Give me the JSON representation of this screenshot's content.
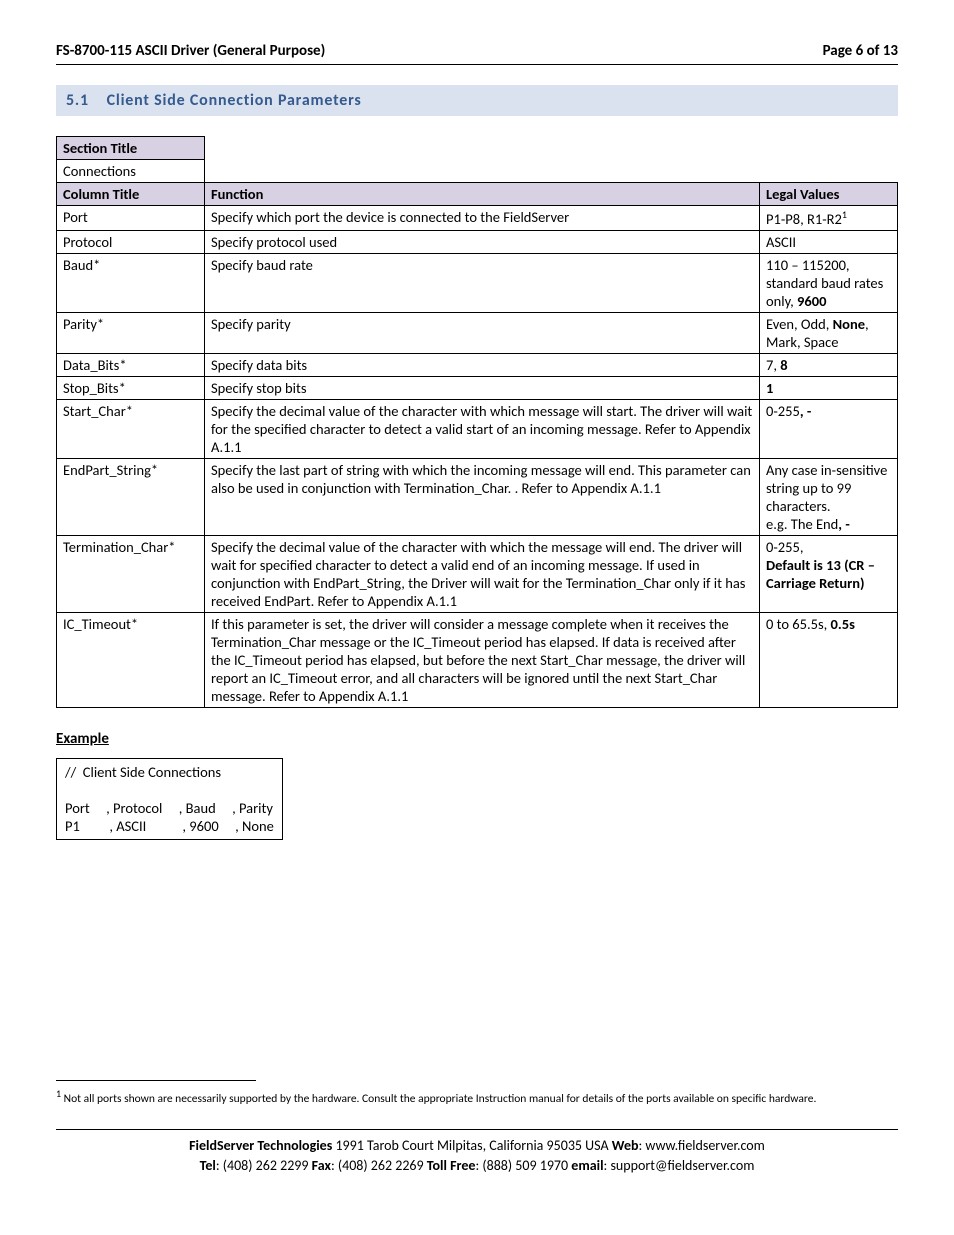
{
  "header": {
    "left": "FS-8700-115 ASCII Driver (General Purpose)",
    "right": "Page 6 of 13"
  },
  "section": {
    "number": "5.1",
    "title": "Client Side Connection Parameters"
  },
  "table": {
    "section_title_label": "Section Title",
    "section_title_value": "Connections",
    "column_title_label": "Column Title",
    "function_label": "Function",
    "legal_values_label": "Legal Values",
    "rows": [
      {
        "col": "Port",
        "func": "Specify which port the device is connected to the FieldServer",
        "legal_pre": "P1-P8, R1-R2",
        "legal_sup": "1"
      },
      {
        "col": "Protocol",
        "func": "Specify protocol used",
        "legal": "ASCII"
      },
      {
        "col": "Baud*",
        "func": "Specify baud rate",
        "legal_just_pre": "110 – 115200, standard baud rates only, ",
        "legal_bold": "9600"
      },
      {
        "col": "Parity*",
        "func": "Specify parity",
        "legal_parity_pre": "Even, Odd, ",
        "legal_parity_bold": "None",
        "legal_parity_post": ", Mark, Space"
      },
      {
        "col": "Data_Bits*",
        "func": "Specify data bits",
        "legal_pre2": "7, ",
        "legal_bold2": "8"
      },
      {
        "col": "Stop_Bits*",
        "func": "Specify stop bits",
        "legal_bold_only": "1"
      },
      {
        "col": "Start_Char*",
        "func_just": "Specify the decimal value of the character with which message will start.  The driver will wait for the specified character to detect a valid start of an incoming message.  Refer to Appendix A.1.1",
        "legal_dash_pre": "0-255",
        "legal_dash_bold": ", -"
      },
      {
        "col": "EndPart_String*",
        "func_just": "Specify the last part of string with which the incoming message will end.  This parameter can also be used in conjunction with Termination_Char. .  Refer to Appendix A.1.1",
        "legal_just_text": "Any case in-sensitive string up to 99 characters.",
        "legal_just_post_pre": "e.g. The End",
        "legal_just_post_bold": ", -"
      },
      {
        "col": "Termination_Char*",
        "func_just": "Specify the decimal value of the character with which the message will end.  The driver will wait for specified character to detect a valid end of an incoming message.  If used in conjunction with EndPart_String, the Driver will wait for the Termination_Char only if it has received EndPart.  Refer to Appendix A.1.1",
        "legal_tc_pre": "0-255,",
        "legal_tc_bold": "Default is 13 (CR – Carriage Return)"
      },
      {
        "col": "IC_Timeout*",
        "func_just": "If this parameter is set, the driver will consider a message complete when it receives the Termination_Char message or the IC_Timeout period has elapsed.  If data is received after the IC_Timeout period has elapsed, but before the next Start_Char message, the driver will report an IC_Timeout error, and all characters will be ignored until the next Start_Char message.  Refer to Appendix A.1.1",
        "legal_ic_pre": "0 to 65.5s, ",
        "legal_ic_bold": "0.5s"
      }
    ]
  },
  "example": {
    "label": "Example",
    "line1": "//  Client Side Connections",
    "line2": "Port     , Protocol     , Baud     , Parity",
    "line3": "P1         , ASCII           , 9600     , None"
  },
  "footnote": {
    "num": "1",
    "text": " Not all ports shown are necessarily supported by the hardware. Consult the appropriate Instruction manual for details of the ports available on specific hardware."
  },
  "footer": {
    "company": "FieldServer Technologies",
    "address": " 1991 Tarob Court Milpitas, California 95035 USA   ",
    "web_label": "Web",
    "web": ": www.fieldserver.com",
    "tel_label": "Tel",
    "tel": ": (408) 262 2299   ",
    "fax_label": "Fax",
    "fax": ": (408) 262 2269   ",
    "tollfree_label": "Toll Free",
    "tollfree": ": (888) 509 1970   ",
    "email_label": "email",
    "email": ": support@fieldserver.com"
  }
}
